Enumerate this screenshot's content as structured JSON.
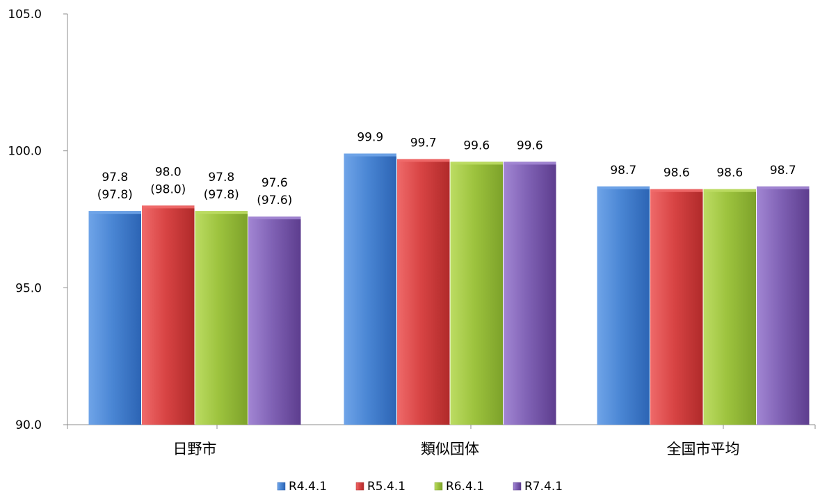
{
  "chart_data": {
    "type": "bar",
    "categories": [
      "日野市",
      "類似団体",
      "全国市平均"
    ],
    "series": [
      {
        "name": "R4.4.1",
        "values": [
          97.8,
          99.9,
          98.7
        ],
        "labels": [
          "97.8\n(97.8)",
          "99.9",
          "98.7"
        ]
      },
      {
        "name": "R5.4.1",
        "values": [
          98.0,
          99.7,
          98.6
        ],
        "labels": [
          "98.0\n(98.0)",
          "99.7",
          "98.6"
        ]
      },
      {
        "name": "R6.4.1",
        "values": [
          97.8,
          99.6,
          98.6
        ],
        "labels": [
          "97.8\n(97.8)",
          "99.6",
          "98.6"
        ]
      },
      {
        "name": "R7.4.1",
        "values": [
          97.6,
          99.6,
          98.7
        ],
        "labels": [
          "97.6\n(97.6)",
          "99.6",
          "98.7"
        ]
      }
    ],
    "ylim": [
      90.0,
      105.0
    ],
    "yticks": [
      "90.0",
      "95.0",
      "100.0",
      "105.0"
    ],
    "legend_position": "bottom",
    "colors": {
      "R4.4.1": {
        "dark": "#2c64b4",
        "mid": "#4a86d4",
        "light": "#6fa4e8"
      },
      "R5.4.1": {
        "dark": "#b02a2a",
        "mid": "#d84444",
        "light": "#ef6a6a"
      },
      "R6.4.1": {
        "dark": "#7da22a",
        "mid": "#9dc33e",
        "light": "#bcdc63"
      },
      "R7.4.1": {
        "dark": "#5d3d8e",
        "mid": "#8062b5",
        "light": "#a286d3"
      }
    }
  }
}
